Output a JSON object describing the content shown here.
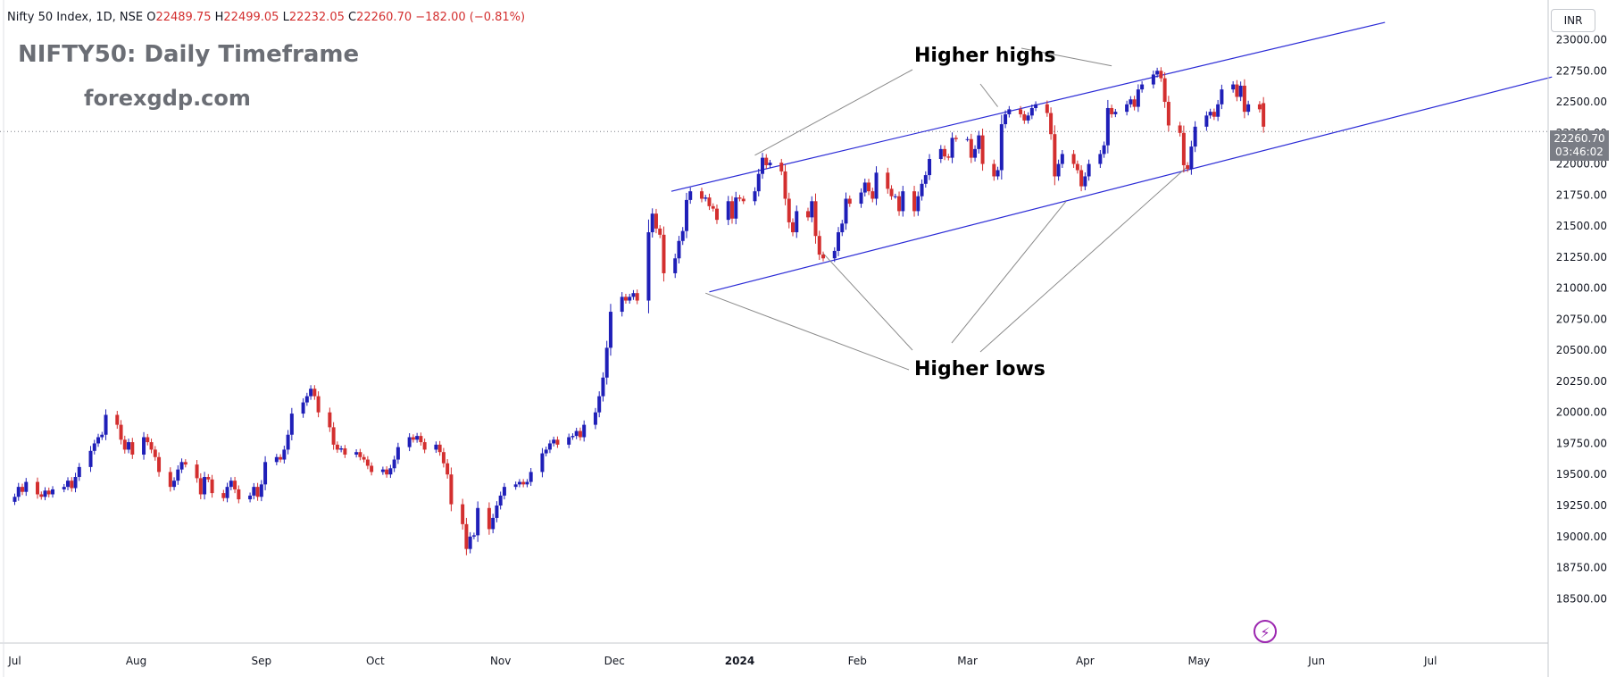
{
  "header": {
    "symbol": "Nifty 50 Index, 1D, NSE",
    "open_label": "O",
    "open": "22489.75",
    "high_label": "H",
    "high": "22499.05",
    "low_label": "L",
    "low": "22232.05",
    "close_label": "C",
    "close": "22260.70",
    "change": "−182.00 (−0.81%)"
  },
  "overlay": {
    "title": "NIFTY50: Daily Timeframe",
    "website": "forexgdp.com"
  },
  "annotations": {
    "highs": "Higher highs",
    "lows": "Higher lows"
  },
  "currency": "INR",
  "last_price": {
    "value": "22260.70",
    "countdown": "03:46:02"
  },
  "colors": {
    "up": "#1f1fb8",
    "down": "#d32f2f",
    "channel": "#2b2bd6",
    "pointer": "#8a8a8a",
    "axis_text": "#131722",
    "price_line": "#7a7d85"
  },
  "icons": {
    "alert": "lightning-icon"
  },
  "chart_data": {
    "type": "candlestick",
    "title": "NIFTY50: Daily Timeframe",
    "ylim": [
      18400,
      23100
    ],
    "y_ticks": [
      18500,
      18750,
      19000,
      19250,
      19500,
      19750,
      20000,
      20250,
      20500,
      20750,
      21000,
      21250,
      21500,
      21750,
      22000,
      22250,
      22500,
      22750,
      23000
    ],
    "y_tick_labels": [
      "18500.00",
      "18750.00",
      "19000.00",
      "19250.00",
      "19500.00",
      "19750.00",
      "20000.00",
      "20250.00",
      "20500.00",
      "20750.00",
      "21000.00",
      "21250.00",
      "21500.00",
      "21750.00",
      "22000.00",
      "22250.00",
      "22500.00",
      "22750.00",
      "23000.00"
    ],
    "x_tick_labels": [
      "Jul",
      "Aug",
      "Sep",
      "Oct",
      "Nov",
      "Dec",
      "2024",
      "Feb",
      "Mar",
      "Apr",
      "May",
      "Jun",
      "Jul"
    ],
    "x_tick_days": [
      -9,
      23,
      56,
      86,
      119,
      149,
      182,
      213,
      242,
      273,
      303,
      334,
      364
    ],
    "x_range_days": [
      -10,
      396
    ],
    "last_price": 22260.7,
    "channel": {
      "upper": [
        {
          "day": 164,
          "price": 21780
        },
        {
          "day": 352,
          "price": 23140
        }
      ],
      "lower": [
        {
          "day": 174,
          "price": 20970
        },
        {
          "day": 396,
          "price": 22700
        }
      ]
    },
    "candles": [
      {
        "d": -9,
        "c": 19320
      },
      {
        "d": -8,
        "c": 19400
      },
      {
        "d": -7,
        "c": 19360
      },
      {
        "d": -6,
        "c": 19440
      },
      {
        "d": -3,
        "c": 19340
      },
      {
        "d": -2,
        "c": 19320
      },
      {
        "d": -1,
        "c": 19370
      },
      {
        "d": 0,
        "c": 19340
      },
      {
        "d": 1,
        "c": 19380
      },
      {
        "d": 4,
        "c": 19400
      },
      {
        "d": 5,
        "c": 19450
      },
      {
        "d": 6,
        "c": 19390
      },
      {
        "d": 7,
        "c": 19480
      },
      {
        "d": 8,
        "c": 19560
      },
      {
        "d": 11,
        "c": 19690
      },
      {
        "d": 12,
        "c": 19750
      },
      {
        "d": 13,
        "c": 19800
      },
      {
        "d": 14,
        "c": 19820
      },
      {
        "d": 15,
        "c": 19980
      },
      {
        "d": 18,
        "c": 19900
      },
      {
        "d": 19,
        "c": 19780
      },
      {
        "d": 20,
        "c": 19700
      },
      {
        "d": 21,
        "c": 19760
      },
      {
        "d": 22,
        "c": 19660
      },
      {
        "d": 25,
        "c": 19800
      },
      {
        "d": 26,
        "c": 19760
      },
      {
        "d": 27,
        "c": 19700
      },
      {
        "d": 28,
        "c": 19640
      },
      {
        "d": 29,
        "c": 19520
      },
      {
        "d": 32,
        "c": 19400
      },
      {
        "d": 33,
        "c": 19450
      },
      {
        "d": 34,
        "c": 19540
      },
      {
        "d": 35,
        "c": 19600
      },
      {
        "d": 36,
        "c": 19580
      },
      {
        "d": 39,
        "c": 19470
      },
      {
        "d": 40,
        "c": 19340
      },
      {
        "d": 41,
        "c": 19480
      },
      {
        "d": 42,
        "c": 19460
      },
      {
        "d": 43,
        "c": 19350
      },
      {
        "d": 46,
        "c": 19310
      },
      {
        "d": 47,
        "c": 19400
      },
      {
        "d": 48,
        "c": 19450
      },
      {
        "d": 49,
        "c": 19380
      },
      {
        "d": 50,
        "c": 19300
      },
      {
        "d": 53,
        "c": 19330
      },
      {
        "d": 54,
        "c": 19400
      },
      {
        "d": 55,
        "c": 19320
      },
      {
        "d": 56,
        "c": 19420
      },
      {
        "d": 57,
        "c": 19600
      },
      {
        "d": 60,
        "c": 19640
      },
      {
        "d": 61,
        "c": 19620
      },
      {
        "d": 62,
        "c": 19700
      },
      {
        "d": 63,
        "c": 19820
      },
      {
        "d": 64,
        "c": 19990
      },
      {
        "d": 67,
        "c": 20080
      },
      {
        "d": 68,
        "c": 20130
      },
      {
        "d": 69,
        "c": 20190
      },
      {
        "d": 70,
        "c": 20130
      },
      {
        "d": 71,
        "c": 20000
      },
      {
        "d": 74,
        "c": 19880
      },
      {
        "d": 75,
        "c": 19740
      },
      {
        "d": 76,
        "c": 19700
      },
      {
        "d": 77,
        "c": 19710
      },
      {
        "d": 78,
        "c": 19660
      },
      {
        "d": 81,
        "c": 19680
      },
      {
        "d": 82,
        "c": 19640
      },
      {
        "d": 83,
        "c": 19620
      },
      {
        "d": 84,
        "c": 19570
      },
      {
        "d": 85,
        "c": 19520
      },
      {
        "d": 88,
        "c": 19540
      },
      {
        "d": 89,
        "c": 19500
      },
      {
        "d": 90,
        "c": 19550
      },
      {
        "d": 91,
        "c": 19620
      },
      {
        "d": 92,
        "c": 19720
      },
      {
        "d": 95,
        "c": 19800
      },
      {
        "d": 96,
        "c": 19780
      },
      {
        "d": 97,
        "c": 19810
      },
      {
        "d": 98,
        "c": 19760
      },
      {
        "d": 99,
        "c": 19700
      },
      {
        "d": 102,
        "c": 19740
      },
      {
        "d": 103,
        "c": 19680
      },
      {
        "d": 104,
        "c": 19590
      },
      {
        "d": 105,
        "c": 19500
      },
      {
        "d": 106,
        "c": 19260
      },
      {
        "d": 109,
        "c": 19100
      },
      {
        "d": 110,
        "c": 18900
      },
      {
        "d": 111,
        "c": 19000
      },
      {
        "d": 112,
        "c": 19010
      },
      {
        "d": 113,
        "c": 19230
      },
      {
        "d": 116,
        "c": 19060
      },
      {
        "d": 117,
        "c": 19150
      },
      {
        "d": 118,
        "c": 19250
      },
      {
        "d": 119,
        "c": 19330
      },
      {
        "d": 120,
        "c": 19400
      },
      {
        "d": 123,
        "c": 19420
      },
      {
        "d": 124,
        "c": 19440
      },
      {
        "d": 125,
        "c": 19420
      },
      {
        "d": 126,
        "c": 19440
      },
      {
        "d": 127,
        "c": 19520
      },
      {
        "d": 130,
        "c": 19670
      },
      {
        "d": 131,
        "c": 19700
      },
      {
        "d": 132,
        "c": 19750
      },
      {
        "d": 133,
        "c": 19780
      },
      {
        "d": 134,
        "c": 19740
      },
      {
        "d": 137,
        "c": 19800
      },
      {
        "d": 138,
        "c": 19810
      },
      {
        "d": 139,
        "c": 19850
      },
      {
        "d": 140,
        "c": 19800
      },
      {
        "d": 141,
        "c": 19900
      },
      {
        "d": 144,
        "c": 20000
      },
      {
        "d": 145,
        "c": 20130
      },
      {
        "d": 146,
        "c": 20280
      },
      {
        "d": 147,
        "c": 20520
      },
      {
        "d": 148,
        "c": 20810
      },
      {
        "d": 151,
        "c": 20930
      },
      {
        "d": 152,
        "c": 20900
      },
      {
        "d": 153,
        "c": 20930
      },
      {
        "d": 154,
        "c": 20960
      },
      {
        "d": 155,
        "c": 20900
      },
      {
        "d": 158,
        "c": 21450
      },
      {
        "d": 159,
        "c": 21600
      },
      {
        "d": 160,
        "c": 21480
      },
      {
        "d": 161,
        "c": 21430
      },
      {
        "d": 162,
        "c": 21120
      },
      {
        "d": 165,
        "c": 21240
      },
      {
        "d": 166,
        "c": 21380
      },
      {
        "d": 167,
        "c": 21460
      },
      {
        "d": 168,
        "c": 21710
      },
      {
        "d": 169,
        "c": 21780
      },
      {
        "d": 172,
        "c": 21720
      },
      {
        "d": 173,
        "c": 21730
      },
      {
        "d": 174,
        "c": 21660
      },
      {
        "d": 175,
        "c": 21640
      },
      {
        "d": 176,
        "c": 21550
      },
      {
        "d": 179,
        "c": 21700
      },
      {
        "d": 180,
        "c": 21560
      },
      {
        "d": 181,
        "c": 21730
      },
      {
        "d": 182,
        "c": 21720
      },
      {
        "d": 183,
        "c": 21700
      },
      {
        "d": 186,
        "c": 21780
      },
      {
        "d": 187,
        "c": 21920
      },
      {
        "d": 188,
        "c": 22050
      },
      {
        "d": 189,
        "c": 21990
      },
      {
        "d": 190,
        "c": 22010
      },
      {
        "d": 193,
        "c": 21940
      },
      {
        "d": 194,
        "c": 21720
      },
      {
        "d": 195,
        "c": 21530
      },
      {
        "d": 196,
        "c": 21450
      },
      {
        "d": 197,
        "c": 21620
      },
      {
        "d": 200,
        "c": 21570
      },
      {
        "d": 201,
        "c": 21700
      },
      {
        "d": 202,
        "c": 21420
      },
      {
        "d": 203,
        "c": 21270
      },
      {
        "d": 204,
        "c": 21240
      },
      {
        "d": 207,
        "c": 21300
      },
      {
        "d": 208,
        "c": 21450
      },
      {
        "d": 209,
        "c": 21520
      },
      {
        "d": 210,
        "c": 21720
      },
      {
        "d": 211,
        "c": 21680
      },
      {
        "d": 214,
        "c": 21770
      },
      {
        "d": 215,
        "c": 21850
      },
      {
        "d": 216,
        "c": 21780
      },
      {
        "d": 217,
        "c": 21720
      },
      {
        "d": 218,
        "c": 21930
      },
      {
        "d": 221,
        "c": 21800
      },
      {
        "d": 222,
        "c": 21740
      },
      {
        "d": 223,
        "c": 21740
      },
      {
        "d": 224,
        "c": 21620
      },
      {
        "d": 225,
        "c": 21780
      },
      {
        "d": 228,
        "c": 21620
      },
      {
        "d": 229,
        "c": 21740
      },
      {
        "d": 230,
        "c": 21840
      },
      {
        "d": 231,
        "c": 21910
      },
      {
        "d": 232,
        "c": 22040
      },
      {
        "d": 235,
        "c": 22120
      },
      {
        "d": 236,
        "c": 22060
      },
      {
        "d": 237,
        "c": 22050
      },
      {
        "d": 238,
        "c": 22210
      },
      {
        "d": 239,
        "c": 22200
      },
      {
        "d": 242,
        "c": 22200
      },
      {
        "d": 243,
        "c": 22050
      },
      {
        "d": 244,
        "c": 22120
      },
      {
        "d": 245,
        "c": 22230
      },
      {
        "d": 246,
        "c": 22000
      },
      {
        "d": 249,
        "c": 21900
      },
      {
        "d": 250,
        "c": 21950
      },
      {
        "d": 251,
        "c": 22320
      },
      {
        "d": 252,
        "c": 22400
      },
      {
        "d": 253,
        "c": 22440
      },
      {
        "d": 256,
        "c": 22400
      },
      {
        "d": 257,
        "c": 22350
      },
      {
        "d": 258,
        "c": 22390
      },
      {
        "d": 259,
        "c": 22450
      },
      {
        "d": 260,
        "c": 22480
      },
      {
        "d": 263,
        "c": 22410
      },
      {
        "d": 264,
        "c": 22240
      },
      {
        "d": 265,
        "c": 21900
      },
      {
        "d": 266,
        "c": 22000
      },
      {
        "d": 267,
        "c": 22080
      },
      {
        "d": 270,
        "c": 22000
      },
      {
        "d": 271,
        "c": 21950
      },
      {
        "d": 272,
        "c": 21820
      },
      {
        "d": 273,
        "c": 21900
      },
      {
        "d": 274,
        "c": 22000
      },
      {
        "d": 277,
        "c": 22080
      },
      {
        "d": 278,
        "c": 22150
      },
      {
        "d": 279,
        "c": 22450
      },
      {
        "d": 280,
        "c": 22400
      },
      {
        "d": 281,
        "c": 22420
      },
      {
        "d": 284,
        "c": 22480
      },
      {
        "d": 285,
        "c": 22520
      },
      {
        "d": 286,
        "c": 22460
      },
      {
        "d": 287,
        "c": 22600
      },
      {
        "d": 288,
        "c": 22640
      },
      {
        "d": 291,
        "c": 22720
      },
      {
        "d": 292,
        "c": 22750
      },
      {
        "d": 293,
        "c": 22690
      },
      {
        "d": 294,
        "c": 22500
      },
      {
        "d": 295,
        "c": 22310
      },
      {
        "d": 298,
        "c": 22250
      },
      {
        "d": 299,
        "c": 21990
      },
      {
        "d": 300,
        "c": 21960
      },
      {
        "d": 301,
        "c": 22140
      },
      {
        "d": 302,
        "c": 22300
      },
      {
        "d": 305,
        "c": 22390
      },
      {
        "d": 306,
        "c": 22420
      },
      {
        "d": 307,
        "c": 22380
      },
      {
        "d": 308,
        "c": 22480
      },
      {
        "d": 309,
        "c": 22600
      },
      {
        "d": 312,
        "c": 22640
      },
      {
        "d": 313,
        "c": 22540
      },
      {
        "d": 314,
        "c": 22630
      },
      {
        "d": 315,
        "c": 22420
      },
      {
        "d": 316,
        "c": 22480
      },
      {
        "d": 319,
        "c": 22440
      },
      {
        "d": 320,
        "c": 22300
      }
    ]
  }
}
